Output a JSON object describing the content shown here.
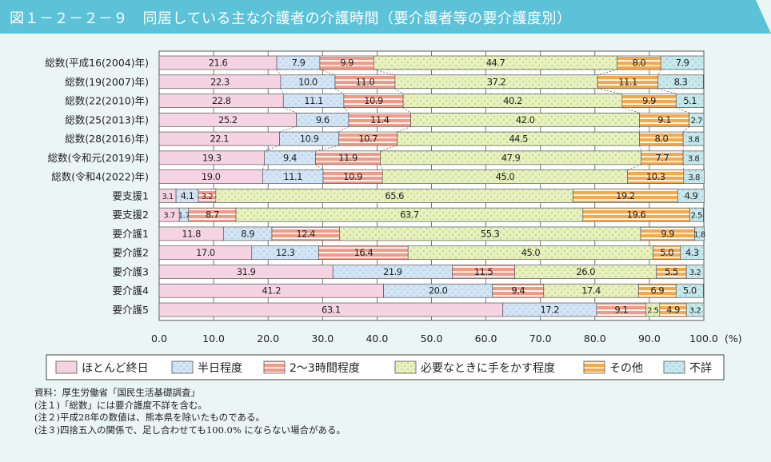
{
  "title": "図１－２－２－９　同居している主な介護者の介護時間（要介護者等の要介護度別）",
  "chart_data": {
    "type": "bar",
    "orientation": "horizontal",
    "stacked": true,
    "title": "図１－２－２－９　同居している主な介護者の介護時間（要介護者等の要介護度別）",
    "xlabel": "(%)",
    "xlim": [
      0,
      100
    ],
    "xticks": [
      "0.0",
      "10.0",
      "20.0",
      "30.0",
      "40.0",
      "50.0",
      "60.0",
      "70.0",
      "80.0",
      "90.0",
      "100.0"
    ],
    "grid": true,
    "legend_position": "bottom",
    "categories": [
      "総数(平成16(2004)年)",
      "総数(19(2007)年)",
      "総数(22(2010)年)",
      "総数(25(2013)年)",
      "総数(28(2016)年)",
      "総数(令和元(2019)年)",
      "総数(令和4(2022)年)",
      "要支援1",
      "要支援2",
      "要介護1",
      "要介護2",
      "要介護3",
      "要介護4",
      "要介護5"
    ],
    "series": [
      {
        "name": "ほとんど終日",
        "color": "#f6d3e2",
        "pattern": "solid",
        "values": [
          21.6,
          22.3,
          22.8,
          25.2,
          22.1,
          19.3,
          19.0,
          3.1,
          3.7,
          11.8,
          17.0,
          31.9,
          41.2,
          63.1
        ]
      },
      {
        "name": "半日程度",
        "color": "#d3e5f5",
        "pattern": "dots",
        "values": [
          7.9,
          10.0,
          11.1,
          9.6,
          10.9,
          9.4,
          11.1,
          4.1,
          1.7,
          8.9,
          12.3,
          21.9,
          20.0,
          17.2
        ]
      },
      {
        "name": "2～3時間程度",
        "color": "#f29a86",
        "pattern": "stripes",
        "values": [
          9.9,
          11.0,
          10.9,
          11.4,
          10.7,
          11.9,
          10.9,
          3.2,
          8.7,
          12.4,
          16.4,
          11.5,
          9.4,
          9.1
        ]
      },
      {
        "name": "必要なときに手をかす程度",
        "color": "#e8f0bf",
        "pattern": "dots",
        "values": [
          44.7,
          37.2,
          40.2,
          42.0,
          44.5,
          47.9,
          45.0,
          65.6,
          63.7,
          55.3,
          45.0,
          26.0,
          17.4,
          2.5
        ]
      },
      {
        "name": "その他",
        "color": "#f7a94a",
        "pattern": "stripes",
        "values": [
          8.0,
          11.1,
          9.9,
          9.1,
          8.0,
          7.7,
          10.3,
          19.2,
          19.6,
          9.9,
          5.0,
          5.5,
          6.9,
          4.9
        ]
      },
      {
        "name": "不詳",
        "color": "#c8e8ec",
        "pattern": "dots",
        "values": [
          7.9,
          8.3,
          5.1,
          2.7,
          3.8,
          3.8,
          3.8,
          4.9,
          2.5,
          1.8,
          4.3,
          3.2,
          5.0,
          3.2
        ]
      }
    ]
  },
  "notes": [
    "資料：厚生労働省「国民生活基礎調査」",
    "(注１)「総数」には要介護度不詳を含む。",
    "(注２)平成28年の数値は、熊本県を除いたものである。",
    "(注３)四捨五入の関係で、足し合わせても100.0% にならない場合がある。"
  ]
}
